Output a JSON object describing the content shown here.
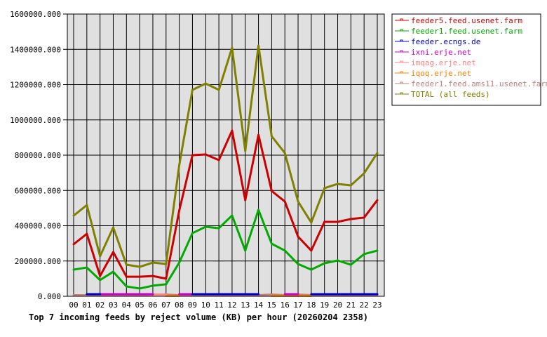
{
  "chart_data": {
    "type": "line",
    "title": "Top 7 incoming feeds by reject volume (KB) per hour (20260204 2358)",
    "xlabel": "",
    "ylabel": "",
    "ylim": [
      0,
      1600000
    ],
    "yticks": [
      "0.000",
      "200000.000",
      "400000.000",
      "600000.000",
      "800000.000",
      "1000000.000",
      "1200000.000",
      "1400000.000",
      "1600000.000"
    ],
    "categories": [
      "00",
      "01",
      "02",
      "03",
      "04",
      "05",
      "06",
      "07",
      "08",
      "09",
      "10",
      "11",
      "12",
      "13",
      "14",
      "15",
      "16",
      "17",
      "18",
      "19",
      "20",
      "21",
      "22",
      "23"
    ],
    "grid": true,
    "legend_position": "right",
    "series": [
      {
        "name": "feeder5.feed.usenet.farm",
        "color": "#cc0000",
        "values": [
          295000,
          354000,
          115000,
          251000,
          111000,
          111000,
          115000,
          100000,
          486000,
          800000,
          804000,
          772000,
          939000,
          545000,
          915000,
          597000,
          537000,
          338000,
          259000,
          422000,
          422000,
          438000,
          446000,
          545000
        ]
      },
      {
        "name": "feeder1.feed.usenet.farm",
        "color": "#00aa00",
        "values": [
          151000,
          163000,
          92000,
          139000,
          56000,
          44000,
          60000,
          68000,
          191000,
          358000,
          394000,
          386000,
          458000,
          259000,
          490000,
          298000,
          259000,
          183000,
          151000,
          187000,
          203000,
          179000,
          239000,
          259000
        ]
      },
      {
        "name": "feeder.ecngs.de",
        "color": "#0000cc",
        "values": [
          null,
          12000,
          12000,
          null,
          null,
          null,
          null,
          null,
          null,
          12000,
          12000,
          12000,
          12000,
          12000,
          12000,
          null,
          null,
          null,
          12000,
          12000,
          12000,
          12000,
          12000,
          12000
        ]
      },
      {
        "name": "ixni.erje.net",
        "color": "#cc00cc",
        "values": [
          null,
          null,
          12000,
          12000,
          12000,
          12000,
          12000,
          null,
          12000,
          12000,
          null,
          null,
          null,
          null,
          null,
          null,
          12000,
          12000,
          null,
          null,
          null,
          null,
          null,
          null
        ]
      },
      {
        "name": "imqag.erje.net",
        "color": "#ff8080",
        "values": [
          null,
          null,
          null,
          null,
          null,
          null,
          10000,
          10000,
          null,
          null,
          null,
          null,
          null,
          null,
          null,
          null,
          null,
          null,
          null,
          null,
          null,
          null,
          null,
          null
        ]
      },
      {
        "name": "iqoq.erje.net",
        "color": "#ff8000",
        "values": [
          null,
          null,
          null,
          null,
          null,
          null,
          null,
          3000,
          3000,
          null,
          null,
          null,
          null,
          null,
          null,
          3000,
          3000,
          3000,
          3000,
          null,
          null,
          null,
          null,
          null
        ]
      },
      {
        "name": "feeder1.feed.ams11.usenet.farm",
        "color": "#c08080",
        "values": [
          6000,
          6000,
          6000,
          6000,
          6000,
          6000,
          10000,
          10000,
          6000,
          6000,
          6000,
          6000,
          6000,
          6000,
          6000,
          10000,
          6000,
          10000,
          6000,
          6000,
          6000,
          6000,
          6000,
          6000
        ]
      },
      {
        "name": "TOTAL (all feeds)",
        "color": "#808000",
        "values": [
          457000,
          517000,
          227000,
          390000,
          179000,
          167000,
          191000,
          183000,
          744000,
          1170000,
          1206000,
          1170000,
          1409000,
          824000,
          1421000,
          907000,
          812000,
          537000,
          418000,
          613000,
          637000,
          629000,
          697000,
          812000
        ]
      }
    ]
  }
}
